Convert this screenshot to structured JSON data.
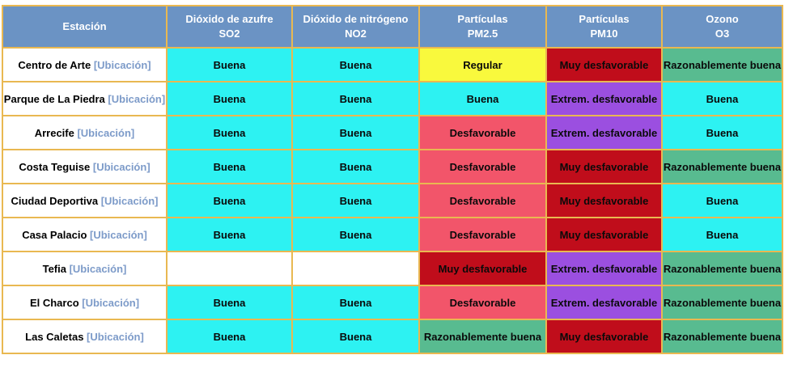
{
  "header": {
    "columns": [
      {
        "label": "Estación",
        "sub": ""
      },
      {
        "label": "Dióxido de azufre",
        "sub": "SO2"
      },
      {
        "label": "Dióxido de nitrógeno",
        "sub": "NO2"
      },
      {
        "label": "Partículas",
        "sub": "PM2.5"
      },
      {
        "label": "Partículas",
        "sub": "PM10"
      },
      {
        "label": "Ozono",
        "sub": "O3"
      }
    ]
  },
  "legend_colors": {
    "Buena": "#2df2f2",
    "Regular": "#f9f93d",
    "Razonablemente buena": "#58bb90",
    "Desfavorable": "#f2556a",
    "Muy desfavorable": "#c00d1b",
    "Extrem. desfavorable": "#9b4fe0",
    "empty": "#ffffff"
  },
  "border_color": "#e9b851",
  "header_color": "#6b93c4",
  "location_link_label": "[Ubicación]",
  "rows": [
    {
      "station": "Centro de Arte",
      "link": "[Ubicación]",
      "values": [
        "Buena",
        "Buena",
        "Regular",
        "Muy desfavorable",
        "Razonablemente buena"
      ]
    },
    {
      "station": "Parque de La Piedra",
      "link": "[Ubicación]",
      "values": [
        "Buena",
        "Buena",
        "Buena",
        "Extrem. desfavorable",
        "Buena"
      ]
    },
    {
      "station": "Arrecife",
      "link": "[Ubicación]",
      "values": [
        "Buena",
        "Buena",
        "Desfavorable",
        "Extrem. desfavorable",
        "Buena"
      ]
    },
    {
      "station": "Costa Teguise",
      "link": "[Ubicación]",
      "values": [
        "Buena",
        "Buena",
        "Desfavorable",
        "Muy desfavorable",
        "Razonablemente buena"
      ]
    },
    {
      "station": "Ciudad Deportiva",
      "link": "[Ubicación]",
      "values": [
        "Buena",
        "Buena",
        "Desfavorable",
        "Muy desfavorable",
        "Buena"
      ]
    },
    {
      "station": "Casa Palacio",
      "link": "[Ubicación]",
      "values": [
        "Buena",
        "Buena",
        "Desfavorable",
        "Muy desfavorable",
        "Buena"
      ]
    },
    {
      "station": "Tefia",
      "link": "[Ubicación]",
      "values": [
        "",
        "",
        "Muy desfavorable",
        "Extrem. desfavorable",
        "Razonablemente buena"
      ]
    },
    {
      "station": "El Charco",
      "link": "[Ubicación]",
      "values": [
        "Buena",
        "Buena",
        "Desfavorable",
        "Extrem. desfavorable",
        "Razonablemente buena"
      ]
    },
    {
      "station": "Las Caletas",
      "link": "[Ubicación]",
      "values": [
        "Buena",
        "Buena",
        "Razonablemente buena",
        "Muy desfavorable",
        "Razonablemente buena"
      ]
    }
  ]
}
